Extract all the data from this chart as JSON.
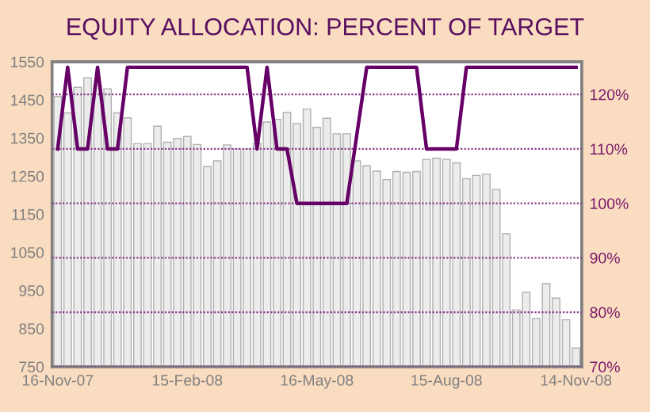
{
  "chart_data": {
    "type": "bar",
    "title": "EQUITY ALLOCATION: PERCENT OF TARGET",
    "x": [
      "2007-11-16",
      "2007-11-23",
      "2007-11-30",
      "2007-12-07",
      "2007-12-14",
      "2007-12-21",
      "2007-12-28",
      "2008-01-04",
      "2008-01-11",
      "2008-01-18",
      "2008-01-25",
      "2008-02-01",
      "2008-02-08",
      "2008-02-15",
      "2008-02-22",
      "2008-02-29",
      "2008-03-07",
      "2008-03-14",
      "2008-03-21",
      "2008-03-28",
      "2008-04-04",
      "2008-04-11",
      "2008-04-18",
      "2008-04-25",
      "2008-05-02",
      "2008-05-09",
      "2008-05-16",
      "2008-05-23",
      "2008-05-30",
      "2008-06-06",
      "2008-06-13",
      "2008-06-20",
      "2008-06-27",
      "2008-07-04",
      "2008-07-11",
      "2008-07-18",
      "2008-07-25",
      "2008-08-01",
      "2008-08-08",
      "2008-08-15",
      "2008-08-22",
      "2008-08-29",
      "2008-09-05",
      "2008-09-12",
      "2008-09-19",
      "2008-09-26",
      "2008-10-03",
      "2008-10-10",
      "2008-10-17",
      "2008-10-24",
      "2008-10-31",
      "2008-11-07",
      "2008-11-14"
    ],
    "series": [
      {
        "color": "#ececec",
        "values": [
          1459,
          1416,
          1483,
          1508,
          1489,
          1479,
          1416,
          1403,
          1335,
          1335,
          1381,
          1339,
          1349,
          1354,
          1333,
          1275,
          1290,
          1332,
          1321,
          1321,
          1336,
          1392,
          1399,
          1417,
          1388,
          1426,
          1378,
          1402,
          1361,
          1361,
          1290,
          1277,
          1263,
          1241,
          1262,
          1260,
          1262,
          1294,
          1297,
          1294,
          1285,
          1243,
          1252,
          1255,
          1215,
          1099,
          899,
          945,
          876,
          968,
          930,
          873,
          799
        ]
      },
      {
        "type": "line",
        "axis": "y2",
        "color": "#660066",
        "values": [
          110,
          125,
          110,
          110,
          125,
          110,
          110,
          125,
          125,
          125,
          125,
          125,
          125,
          125,
          125,
          125,
          125,
          125,
          125,
          125,
          110,
          125,
          110,
          110,
          100,
          100,
          100,
          100,
          100,
          100,
          112.5,
          125,
          125,
          125,
          125,
          125,
          125,
          110,
          110,
          110,
          110,
          125,
          125,
          125,
          125,
          125,
          125,
          125,
          125,
          125,
          125,
          125,
          125
        ]
      }
    ],
    "xlim": [
      "2007-11-12",
      "2008-11-18"
    ],
    "xticks": [
      {
        "value": "2007-11-16",
        "label": "16-Nov-07"
      },
      {
        "value": "2008-02-15",
        "label": "15-Feb-08"
      },
      {
        "value": "2008-05-16",
        "label": "16-May-08"
      },
      {
        "value": "2008-08-15",
        "label": "15-Aug-08"
      },
      {
        "value": "2008-11-14",
        "label": "14-Nov-08"
      }
    ],
    "ylim": [
      750,
      1550
    ],
    "yticks": [
      750,
      850,
      950,
      1050,
      1150,
      1250,
      1350,
      1450,
      1550
    ],
    "y2lim": [
      70,
      126
    ],
    "y2ticks": [
      {
        "value": 70,
        "label": "70%"
      },
      {
        "value": 80,
        "label": "80%"
      },
      {
        "value": 90,
        "label": "90%"
      },
      {
        "value": 100,
        "label": "100%"
      },
      {
        "value": 110,
        "label": "110%"
      },
      {
        "value": 120,
        "label": "120%"
      }
    ],
    "grid": "y2"
  }
}
